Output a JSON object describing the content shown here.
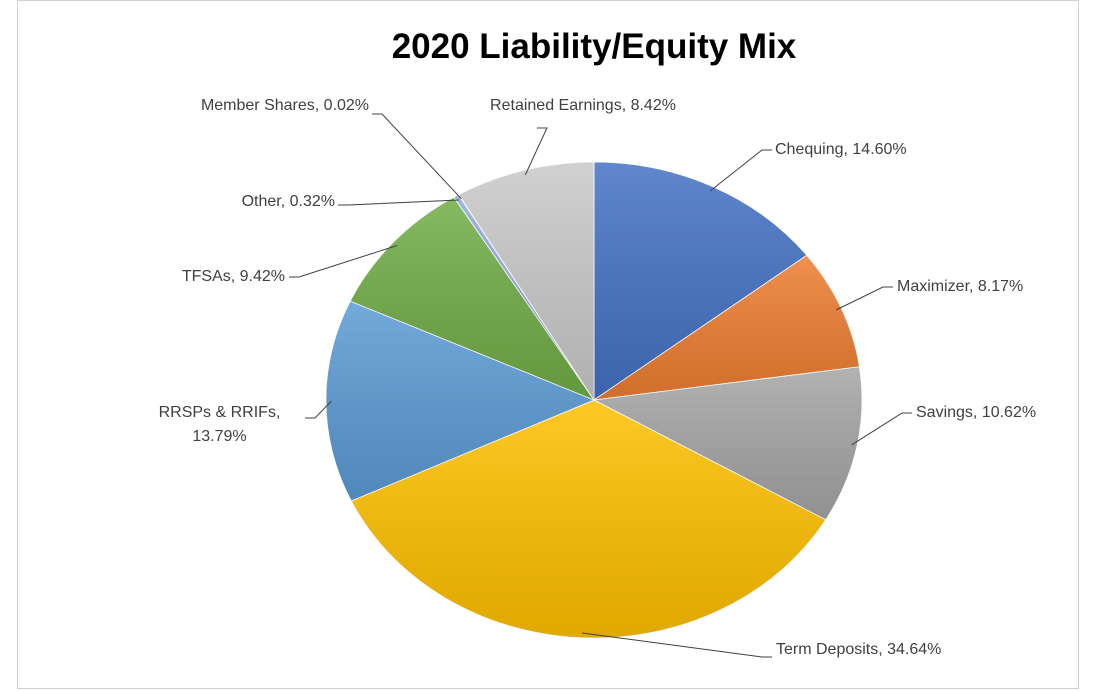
{
  "chart_data": {
    "type": "pie",
    "title": "2020 Liability/Equity Mix",
    "categories": [
      "Chequing",
      "Maximizer",
      "Savings",
      "Term Deposits",
      "RRSPs & RRIFs",
      "TFSAs",
      "Other",
      "Member Shares",
      "Retained Earnings"
    ],
    "values": [
      14.6,
      8.17,
      10.62,
      34.64,
      13.79,
      9.42,
      0.32,
      0.02,
      8.42
    ],
    "value_labels": [
      "Chequing, 14.60%",
      "Maximizer, 8.17%",
      "Savings, 10.62%",
      "Term Deposits, 34.64%",
      "RRSPs & RRIFs, 13.79%",
      "TFSAs, 9.42%",
      "Other, 0.32%",
      "Member Shares, 0.02%",
      "Retained Earnings, 8.42%"
    ],
    "colors": [
      "#4472c4",
      "#ed7d31",
      "#a5a5a5",
      "#ffc000",
      "#5b9bd5",
      "#70ad47",
      "#8faadc",
      "#997300",
      "#c9c9c9"
    ]
  }
}
